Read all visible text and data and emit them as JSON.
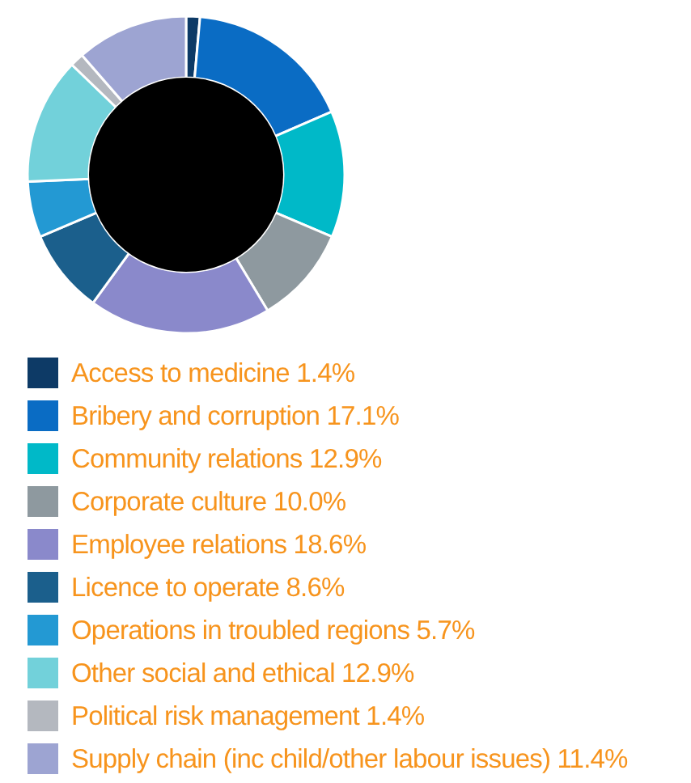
{
  "chart_data": {
    "type": "donut",
    "categories": [
      "Access to medicine",
      "Bribery and corruption",
      "Community relations",
      "Corporate culture",
      "Employee relations",
      "Licence to operate",
      "Operations in troubled regions",
      "Other social and ethical",
      "Political risk management",
      "Supply chain (inc child/other labour issues)"
    ],
    "values": [
      1.4,
      17.1,
      12.9,
      10.0,
      18.6,
      8.6,
      5.7,
      12.9,
      1.4,
      11.4
    ],
    "value_labels": [
      "1.4%",
      "17.1%",
      "12.9%",
      "10.0%",
      "18.6%",
      "8.6%",
      "5.7%",
      "12.9%",
      "1.4%",
      "11.4%"
    ],
    "colors": [
      "#0d3a66",
      "#0a6cc4",
      "#00b9c8",
      "#8e999f",
      "#8a89cb",
      "#1b5f8c",
      "#2399d3",
      "#72d1da",
      "#b4b8bf",
      "#9da4d2"
    ],
    "legend": "bottom"
  }
}
